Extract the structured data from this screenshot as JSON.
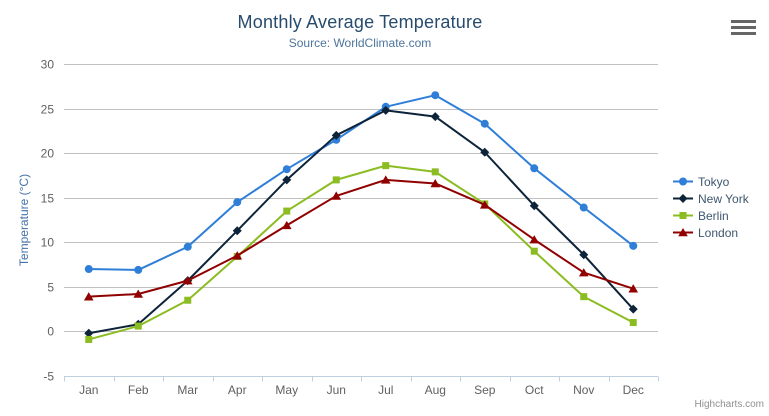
{
  "header": {
    "title": "Monthly Average Temperature",
    "subtitle": "Source: WorldClimate.com"
  },
  "credits": {
    "label": "Highcharts.com"
  },
  "icons": {
    "menu": "hamburger-icon"
  },
  "colors": {
    "background": "#ffffff",
    "title": "#274b6d",
    "subtitle": "#4d759e",
    "axis_title": "#4572a7",
    "axis_labels": "#606060",
    "gridline": "#c0c0c0",
    "axis_line": "#c0d0e0",
    "legend_text": "#3e576f",
    "credits_text": "#909090",
    "menu_icon": "#666666"
  },
  "chart_data": {
    "type": "line",
    "title": "Monthly Average Temperature",
    "subtitle": "Source: WorldClimate.com",
    "categories": [
      "Jan",
      "Feb",
      "Mar",
      "Apr",
      "May",
      "Jun",
      "Jul",
      "Aug",
      "Sep",
      "Oct",
      "Nov",
      "Dec"
    ],
    "xlabel": "",
    "ylabel": "Temperature (°C)",
    "ylim": [
      -5,
      30
    ],
    "ytick_step": 5,
    "grid": true,
    "legend_position": "right",
    "series": [
      {
        "name": "Tokyo",
        "color": "#2f7ed8",
        "marker": "circle",
        "values": [
          7.0,
          6.9,
          9.5,
          14.5,
          18.2,
          21.5,
          25.2,
          26.5,
          23.3,
          18.3,
          13.9,
          9.6
        ]
      },
      {
        "name": "New York",
        "color": "#0d233a",
        "marker": "diamond",
        "values": [
          -0.2,
          0.8,
          5.7,
          11.3,
          17.0,
          22.0,
          24.8,
          24.1,
          20.1,
          14.1,
          8.6,
          2.5
        ]
      },
      {
        "name": "Berlin",
        "color": "#8bbc21",
        "marker": "square",
        "values": [
          -0.9,
          0.6,
          3.5,
          8.4,
          13.5,
          17.0,
          18.6,
          17.9,
          14.3,
          9.0,
          3.9,
          1.0
        ]
      },
      {
        "name": "London",
        "color": "#910000",
        "marker": "triangle",
        "values": [
          3.9,
          4.2,
          5.7,
          8.5,
          11.9,
          15.2,
          17.0,
          16.6,
          14.2,
          10.3,
          6.6,
          4.8
        ]
      }
    ]
  }
}
